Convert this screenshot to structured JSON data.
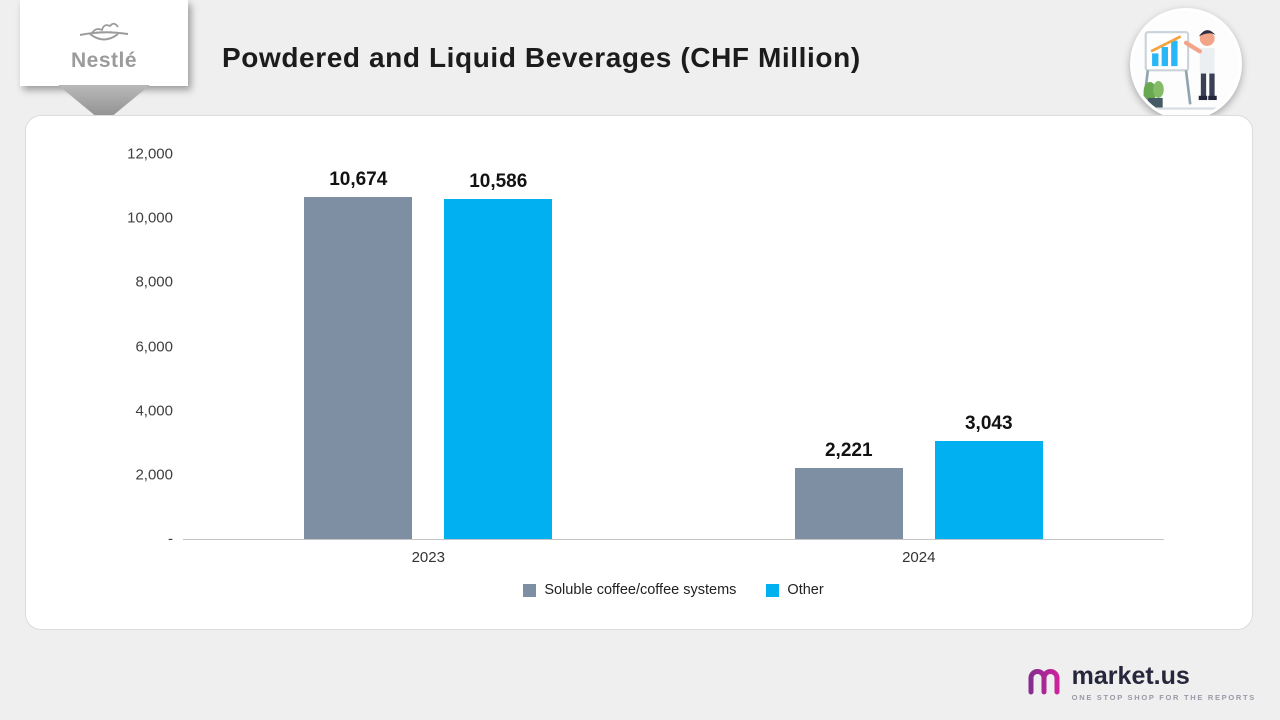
{
  "header": {
    "title": "Powdered and Liquid Beverages (CHF Million)"
  },
  "branding": {
    "nestle_wordmark": "Nestlé"
  },
  "chart_data": {
    "type": "bar",
    "title": "Powdered and Liquid Beverages (CHF Million)",
    "categories": [
      "2023",
      "2024"
    ],
    "series": [
      {
        "name": "Soluble coffee/coffee systems",
        "color": "#7E8FA3",
        "values": [
          10674,
          2221
        ],
        "labels": [
          "10,674",
          "2,221"
        ]
      },
      {
        "name": "Other",
        "color": "#00B0F0",
        "values": [
          10586,
          3043
        ],
        "labels": [
          "10,586",
          "3,043"
        ]
      }
    ],
    "ylim": [
      0,
      12000
    ],
    "yticks": [
      {
        "value": 0,
        "label": "-"
      },
      {
        "value": 2000,
        "label": "2,000"
      },
      {
        "value": 4000,
        "label": "4,000"
      },
      {
        "value": 6000,
        "label": "6,000"
      },
      {
        "value": 8000,
        "label": "8,000"
      },
      {
        "value": 10000,
        "label": "10,000"
      },
      {
        "value": 12000,
        "label": "12,000"
      }
    ],
    "grid": false,
    "legend_position": "bottom"
  },
  "footer": {
    "brand": "market.us",
    "tagline": "ONE STOP SHOP FOR THE REPORTS"
  }
}
